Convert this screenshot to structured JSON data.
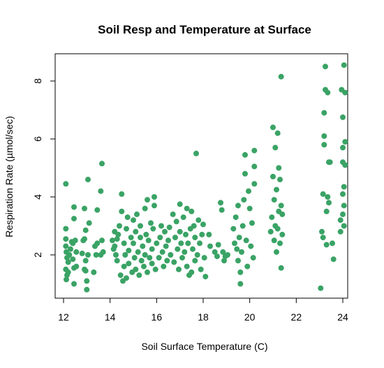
{
  "chart_data": {
    "type": "scatter",
    "title": "Soil Resp and Temperature at Surface",
    "xlabel": "Soil Surface Temperature (C)",
    "ylabel": "Respiration Rate (µmol/sec)",
    "xlim": [
      12,
      24
    ],
    "ylim": [
      0.8,
      8.6
    ],
    "xticks": [
      12,
      14,
      16,
      18,
      20,
      22,
      24
    ],
    "yticks": [
      2,
      4,
      6,
      8
    ],
    "grid": false,
    "legend": "none",
    "point_color": "#3aa365",
    "series": [
      {
        "points": [
          [
            12.1,
            4.45
          ],
          [
            12.1,
            2.9
          ],
          [
            12.1,
            2.55
          ],
          [
            12.1,
            2.3
          ],
          [
            12.12,
            2.1
          ],
          [
            12.15,
            1.9
          ],
          [
            12.1,
            1.5
          ],
          [
            12.15,
            1.3
          ],
          [
            12.12,
            1.15
          ],
          [
            12.2,
            1.4
          ],
          [
            12.2,
            1.75
          ],
          [
            12.25,
            2.0
          ],
          [
            12.3,
            2.2
          ],
          [
            12.35,
            2.45
          ],
          [
            12.4,
            2.4
          ],
          [
            12.45,
            3.65
          ],
          [
            12.45,
            3.25
          ],
          [
            12.4,
            1.85
          ],
          [
            12.45,
            1.55
          ],
          [
            12.5,
            2.5
          ],
          [
            12.45,
            1.0
          ],
          [
            12.55,
            1.6
          ],
          [
            12.55,
            2.1
          ],
          [
            12.8,
            2.05
          ],
          [
            12.85,
            2.5
          ],
          [
            12.9,
            2.55
          ],
          [
            12.95,
            2.85
          ],
          [
            12.9,
            3.6
          ],
          [
            12.95,
            1.8
          ],
          [
            12.9,
            1.5
          ],
          [
            12.95,
            1.45
          ],
          [
            13.0,
            0.8
          ],
          [
            13.0,
            1.1
          ],
          [
            13.05,
            2.0
          ],
          [
            13.05,
            4.6
          ],
          [
            13.1,
            3.1
          ],
          [
            13.3,
            1.4
          ],
          [
            13.35,
            2.3
          ],
          [
            13.4,
            2.0
          ],
          [
            13.45,
            3.55
          ],
          [
            13.45,
            2.4
          ],
          [
            13.6,
            2.0
          ],
          [
            13.6,
            4.2
          ],
          [
            13.65,
            5.15
          ],
          [
            13.65,
            2.5
          ],
          [
            13.7,
            2.1
          ],
          [
            14.1,
            2.5
          ],
          [
            14.15,
            2.2
          ],
          [
            14.2,
            2.8
          ],
          [
            14.2,
            2.3
          ],
          [
            14.25,
            2.0
          ],
          [
            14.3,
            1.8
          ],
          [
            14.3,
            2.55
          ],
          [
            14.35,
            2.7
          ],
          [
            14.4,
            3.0
          ],
          [
            14.45,
            1.3
          ],
          [
            14.5,
            4.1
          ],
          [
            14.5,
            3.5
          ],
          [
            14.55,
            1.1
          ],
          [
            14.6,
            2.4
          ],
          [
            14.6,
            1.6
          ],
          [
            14.65,
            2.0
          ],
          [
            14.7,
            1.2
          ],
          [
            14.7,
            2.9
          ],
          [
            14.75,
            3.3
          ],
          [
            14.8,
            1.7
          ],
          [
            14.8,
            2.15
          ],
          [
            14.9,
            2.6
          ],
          [
            14.95,
            1.4
          ],
          [
            15.0,
            3.2
          ],
          [
            15.0,
            2.4
          ],
          [
            15.05,
            1.9
          ],
          [
            15.1,
            2.8
          ],
          [
            15.1,
            1.5
          ],
          [
            15.15,
            3.4
          ],
          [
            15.2,
            2.1
          ],
          [
            15.25,
            1.3
          ],
          [
            15.3,
            2.6
          ],
          [
            15.3,
            3.0
          ],
          [
            15.35,
            1.8
          ],
          [
            15.4,
            2.3
          ],
          [
            15.45,
            1.6
          ],
          [
            15.5,
            3.6
          ],
          [
            15.5,
            2.0
          ],
          [
            15.55,
            2.7
          ],
          [
            15.6,
            1.4
          ],
          [
            15.6,
            3.9
          ],
          [
            15.65,
            2.5
          ],
          [
            15.7,
            1.9
          ],
          [
            15.75,
            3.1
          ],
          [
            15.8,
            2.2
          ],
          [
            15.8,
            1.7
          ],
          [
            15.85,
            2.9
          ],
          [
            15.9,
            4.0
          ],
          [
            15.9,
            3.7
          ],
          [
            15.95,
            1.5
          ],
          [
            16.0,
            2.4
          ],
          [
            16.1,
            1.9
          ],
          [
            16.15,
            2.6
          ],
          [
            16.2,
            3.0
          ],
          [
            16.25,
            2.1
          ],
          [
            16.3,
            1.6
          ],
          [
            16.35,
            2.8
          ],
          [
            16.4,
            2.3
          ],
          [
            16.45,
            1.8
          ],
          [
            16.5,
            2.5
          ],
          [
            16.55,
            2.95
          ],
          [
            16.6,
            2.0
          ],
          [
            16.7,
            3.4
          ],
          [
            16.75,
            1.75
          ],
          [
            16.8,
            2.6
          ],
          [
            16.85,
            3.15
          ],
          [
            16.9,
            2.2
          ],
          [
            16.95,
            1.5
          ],
          [
            17.0,
            2.8
          ],
          [
            17.0,
            3.75
          ],
          [
            17.05,
            2.4
          ],
          [
            17.1,
            1.9
          ],
          [
            17.15,
            3.3
          ],
          [
            17.2,
            2.1
          ],
          [
            17.25,
            2.7
          ],
          [
            17.3,
            1.6
          ],
          [
            17.3,
            3.6
          ],
          [
            17.35,
            2.4
          ],
          [
            17.4,
            1.3
          ],
          [
            17.45,
            2.9
          ],
          [
            17.5,
            3.5
          ],
          [
            17.5,
            1.4
          ],
          [
            17.55,
            2.2
          ],
          [
            17.6,
            3.0
          ],
          [
            17.65,
            2.6
          ],
          [
            17.65,
            1.8
          ],
          [
            17.7,
            5.5
          ],
          [
            17.75,
            2.0
          ],
          [
            17.8,
            3.2
          ],
          [
            17.85,
            2.4
          ],
          [
            17.9,
            1.5
          ],
          [
            17.95,
            2.7
          ],
          [
            18.0,
            3.05
          ],
          [
            18.05,
            1.9
          ],
          [
            18.1,
            1.25
          ],
          [
            18.25,
            2.7
          ],
          [
            18.3,
            2.3
          ],
          [
            18.5,
            2.1
          ],
          [
            18.6,
            1.95
          ],
          [
            18.65,
            2.35
          ],
          [
            18.75,
            3.8
          ],
          [
            18.8,
            3.55
          ],
          [
            18.85,
            2.1
          ],
          [
            18.9,
            1.8
          ],
          [
            18.95,
            1.95
          ],
          [
            19.05,
            2.0
          ],
          [
            19.3,
            2.9
          ],
          [
            19.35,
            2.4
          ],
          [
            19.4,
            3.3
          ],
          [
            19.45,
            2.2
          ],
          [
            19.5,
            3.7
          ],
          [
            19.5,
            1.8
          ],
          [
            19.55,
            2.6
          ],
          [
            19.6,
            1.4
          ],
          [
            19.6,
            1.0
          ],
          [
            19.65,
            2.1
          ],
          [
            19.7,
            3.0
          ],
          [
            19.75,
            3.9
          ],
          [
            19.8,
            4.8
          ],
          [
            19.8,
            5.45
          ],
          [
            19.85,
            2.5
          ],
          [
            19.9,
            1.6
          ],
          [
            19.95,
            4.2
          ],
          [
            20.0,
            3.6
          ],
          [
            20.05,
            2.3
          ],
          [
            20.1,
            3.1
          ],
          [
            20.15,
            1.9
          ],
          [
            20.2,
            5.05
          ],
          [
            20.2,
            5.6
          ],
          [
            20.2,
            4.45
          ],
          [
            20.9,
            2.8
          ],
          [
            20.95,
            3.3
          ],
          [
            21.0,
            4.7
          ],
          [
            21.0,
            6.4
          ],
          [
            21.05,
            3.9
          ],
          [
            21.05,
            2.5
          ],
          [
            21.1,
            5.7
          ],
          [
            21.1,
            3.0
          ],
          [
            21.15,
            2.1
          ],
          [
            21.15,
            4.25
          ],
          [
            21.2,
            2.9
          ],
          [
            21.2,
            6.2
          ],
          [
            21.25,
            5.0
          ],
          [
            21.25,
            3.5
          ],
          [
            21.3,
            2.4
          ],
          [
            21.3,
            4.6
          ],
          [
            21.35,
            8.15
          ],
          [
            21.35,
            1.55
          ],
          [
            21.35,
            3.7
          ],
          [
            21.4,
            2.7
          ],
          [
            21.4,
            3.4
          ],
          [
            23.05,
            0.85
          ],
          [
            23.1,
            2.8
          ],
          [
            23.15,
            4.1
          ],
          [
            23.15,
            2.6
          ],
          [
            23.2,
            5.8
          ],
          [
            23.2,
            6.1
          ],
          [
            23.2,
            6.9
          ],
          [
            23.25,
            7.7
          ],
          [
            23.25,
            8.5
          ],
          [
            23.3,
            2.35
          ],
          [
            23.3,
            3.5
          ],
          [
            23.35,
            7.6
          ],
          [
            23.35,
            4.0
          ],
          [
            23.4,
            5.2
          ],
          [
            23.4,
            3.8
          ],
          [
            23.45,
            5.2
          ],
          [
            23.55,
            2.4
          ],
          [
            23.6,
            1.85
          ],
          [
            23.9,
            2.8
          ],
          [
            23.9,
            3.2
          ],
          [
            23.95,
            7.7
          ],
          [
            24.0,
            3.4
          ],
          [
            24.0,
            4.1
          ],
          [
            24.0,
            5.7
          ],
          [
            24.0,
            6.75
          ],
          [
            24.0,
            5.2
          ],
          [
            24.05,
            8.55
          ],
          [
            24.05,
            3.0
          ],
          [
            24.05,
            4.35
          ],
          [
            24.05,
            3.7
          ],
          [
            24.1,
            7.6
          ],
          [
            24.1,
            5.9
          ],
          [
            24.1,
            5.1
          ]
        ]
      }
    ]
  }
}
